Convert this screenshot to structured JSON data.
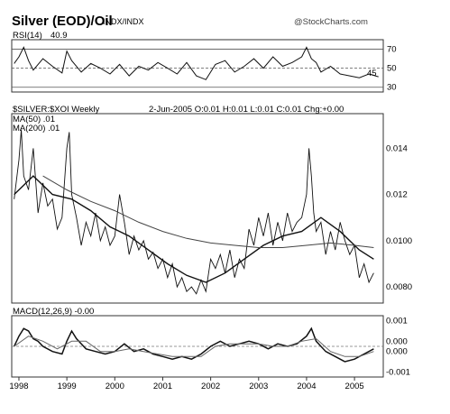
{
  "header": {
    "title": "Silver (EOD)/Oil",
    "title_sub": "INDX/INDX",
    "watermark": "@StockCharts.com"
  },
  "chart_data": [
    {
      "type": "line",
      "panel": "rsi",
      "label": "RSI(14)",
      "value_label": "40.9",
      "y_ticks": [
        "70",
        "50",
        "30"
      ],
      "ylim": [
        25,
        80
      ],
      "x": [
        1997.9,
        1998.0,
        1998.1,
        1998.2,
        1998.3,
        1998.5,
        1998.7,
        1998.9,
        1999.0,
        1999.1,
        1999.3,
        1999.5,
        1999.7,
        1999.9,
        2000.1,
        2000.3,
        2000.5,
        2000.7,
        2000.9,
        2001.1,
        2001.3,
        2001.5,
        2001.7,
        2001.9,
        2002.1,
        2002.3,
        2002.5,
        2002.7,
        2002.9,
        2003.1,
        2003.3,
        2003.5,
        2003.7,
        2003.9,
        2004.0,
        2004.1,
        2004.2,
        2004.3,
        2004.5,
        2004.7,
        2004.9,
        2005.1,
        2005.3,
        2005.5
      ],
      "y": [
        55,
        62,
        72,
        58,
        48,
        60,
        52,
        45,
        68,
        58,
        46,
        55,
        50,
        44,
        54,
        42,
        52,
        48,
        56,
        50,
        44,
        56,
        42,
        38,
        54,
        58,
        46,
        52,
        60,
        50,
        62,
        52,
        56,
        62,
        72,
        60,
        56,
        46,
        52,
        44,
        42,
        40,
        44,
        41
      ],
      "extra_ticks": [
        {
          "y": 45,
          "label": "45"
        }
      ],
      "guides": [
        70,
        50,
        30
      ]
    },
    {
      "type": "line",
      "panel": "price",
      "title": "$SILVER:$XOI Weekly",
      "ohlc_text": "2-Jun-2005 O:0.01 H:0.01 L:0.01 C:0.01 Chg:+0.00",
      "legend": [
        "MA(50) .01",
        "MA(200) .01"
      ],
      "y_ticks": [
        "0.014",
        "0.012",
        "0.0100",
        "0.0080"
      ],
      "ylim": [
        0.0073,
        0.0155
      ],
      "xlim": [
        1997.85,
        2005.6
      ],
      "x_ticks": [
        "1998",
        "1999",
        "2000",
        "2001",
        "2002",
        "2003",
        "2004",
        "2005"
      ],
      "series": [
        {
          "name": "$SILVER:$XOI",
          "x": [
            1997.9,
            1998.0,
            1998.05,
            1998.1,
            1998.2,
            1998.3,
            1998.4,
            1998.5,
            1998.6,
            1998.7,
            1998.8,
            1998.9,
            1999.0,
            1999.05,
            1999.1,
            1999.2,
            1999.3,
            1999.4,
            1999.5,
            1999.6,
            1999.7,
            1999.8,
            1999.9,
            2000.0,
            2000.1,
            2000.2,
            2000.3,
            2000.4,
            2000.5,
            2000.6,
            2000.7,
            2000.8,
            2000.9,
            2001.0,
            2001.1,
            2001.2,
            2001.3,
            2001.4,
            2001.5,
            2001.6,
            2001.7,
            2001.8,
            2001.9,
            2002.0,
            2002.1,
            2002.2,
            2002.3,
            2002.4,
            2002.5,
            2002.6,
            2002.7,
            2002.8,
            2002.9,
            2003.0,
            2003.1,
            2003.2,
            2003.3,
            2003.4,
            2003.5,
            2003.6,
            2003.7,
            2003.8,
            2003.9,
            2004.0,
            2004.05,
            2004.1,
            2004.15,
            2004.2,
            2004.3,
            2004.4,
            2004.5,
            2004.6,
            2004.7,
            2004.8,
            2004.9,
            2005.0,
            2005.1,
            2005.2,
            2005.3,
            2005.4
          ],
          "y": [
            0.0118,
            0.0135,
            0.0148,
            0.0128,
            0.0122,
            0.014,
            0.0112,
            0.0125,
            0.0115,
            0.0118,
            0.0105,
            0.011,
            0.014,
            0.0147,
            0.012,
            0.011,
            0.0098,
            0.0108,
            0.0102,
            0.0112,
            0.01,
            0.0106,
            0.0098,
            0.0102,
            0.012,
            0.0108,
            0.0094,
            0.0102,
            0.0096,
            0.01,
            0.0092,
            0.0095,
            0.0088,
            0.0092,
            0.0084,
            0.009,
            0.008,
            0.0084,
            0.0078,
            0.008,
            0.0077,
            0.0083,
            0.0078,
            0.0092,
            0.0088,
            0.0094,
            0.0086,
            0.0096,
            0.0084,
            0.0092,
            0.0088,
            0.0105,
            0.0098,
            0.011,
            0.0102,
            0.0112,
            0.0098,
            0.0108,
            0.01,
            0.0112,
            0.0104,
            0.0108,
            0.011,
            0.012,
            0.014,
            0.0128,
            0.0112,
            0.0104,
            0.0108,
            0.0094,
            0.0104,
            0.0096,
            0.0108,
            0.01,
            0.0094,
            0.0098,
            0.0084,
            0.009,
            0.0082,
            0.0086
          ]
        },
        {
          "name": "MA(50)",
          "x": [
            1997.9,
            1998.3,
            1998.7,
            1999.1,
            1999.5,
            1999.9,
            2000.3,
            2000.7,
            2001.1,
            2001.5,
            2001.9,
            2002.3,
            2002.7,
            2003.1,
            2003.5,
            2003.9,
            2004.3,
            2004.7,
            2005.1,
            2005.4
          ],
          "y": [
            0.012,
            0.0128,
            0.012,
            0.0118,
            0.0113,
            0.0106,
            0.0102,
            0.0096,
            0.009,
            0.0085,
            0.0082,
            0.0086,
            0.0092,
            0.0098,
            0.0102,
            0.0104,
            0.011,
            0.0104,
            0.0096,
            0.0092
          ]
        },
        {
          "name": "MA(200)",
          "x": [
            1998.5,
            1999.0,
            1999.5,
            2000.0,
            2000.5,
            2001.0,
            2001.5,
            2002.0,
            2002.5,
            2003.0,
            2003.5,
            2004.0,
            2004.5,
            2005.0,
            2005.4
          ],
          "y": [
            0.0128,
            0.0122,
            0.0117,
            0.0113,
            0.0108,
            0.0104,
            0.0101,
            0.0099,
            0.0098,
            0.0097,
            0.0097,
            0.0098,
            0.0099,
            0.0098,
            0.0097
          ]
        }
      ]
    },
    {
      "type": "line",
      "panel": "macd",
      "label": "MACD(12,26,9) -0.00",
      "y_ticks": [
        "0.001",
        "0.000",
        "0.000",
        "-0.001"
      ],
      "ylim": [
        -0.0012,
        0.0012
      ],
      "series": [
        {
          "name": "MACD",
          "x": [
            1997.9,
            1998.0,
            1998.1,
            1998.2,
            1998.3,
            1998.4,
            1998.5,
            1998.7,
            1998.9,
            1999.0,
            1999.1,
            1999.2,
            1999.4,
            1999.6,
            1999.8,
            2000.0,
            2000.2,
            2000.4,
            2000.6,
            2000.8,
            2001.0,
            2001.2,
            2001.4,
            2001.6,
            2001.8,
            2002.0,
            2002.2,
            2002.4,
            2002.6,
            2002.8,
            2003.0,
            2003.2,
            2003.4,
            2003.6,
            2003.8,
            2004.0,
            2004.1,
            2004.2,
            2004.4,
            2004.6,
            2004.8,
            2005.0,
            2005.2,
            2005.4
          ],
          "y": [
            0.0,
            0.0004,
            0.0007,
            0.0006,
            0.0003,
            0.0002,
            0.0,
            -0.0002,
            -0.0003,
            0.0002,
            0.0006,
            0.0003,
            -0.0001,
            -0.0002,
            -0.0003,
            -0.0002,
            0.0001,
            -0.0002,
            -0.0001,
            -0.0003,
            -0.0004,
            -0.0005,
            -0.0004,
            -0.0005,
            -0.0003,
            0.0,
            0.0002,
            0.0,
            0.0001,
            0.0002,
            0.0001,
            -0.0001,
            0.0001,
            0.0,
            0.0001,
            0.0004,
            0.0007,
            0.0002,
            -0.0002,
            -0.0004,
            -0.0006,
            -0.0005,
            -0.0003,
            -0.0001
          ]
        },
        {
          "name": "Signal",
          "x": [
            1997.9,
            1998.2,
            1998.5,
            1998.8,
            1999.1,
            1999.4,
            1999.7,
            2000.0,
            2000.3,
            2000.6,
            2000.9,
            2001.2,
            2001.5,
            2001.8,
            2002.1,
            2002.4,
            2002.7,
            2003.0,
            2003.3,
            2003.6,
            2003.9,
            2004.2,
            2004.5,
            2004.8,
            2005.1,
            2005.4
          ],
          "y": [
            0.0,
            0.0004,
            0.0002,
            -0.0001,
            0.0002,
            0.0002,
            -0.0002,
            -0.0002,
            -0.0001,
            -0.0002,
            -0.0003,
            -0.0004,
            -0.0004,
            -0.0004,
            0.0,
            0.0001,
            0.0001,
            0.0001,
            0.0,
            0.0,
            0.0002,
            0.0003,
            -0.0002,
            -0.0004,
            -0.0004,
            -0.0002
          ]
        }
      ]
    }
  ]
}
